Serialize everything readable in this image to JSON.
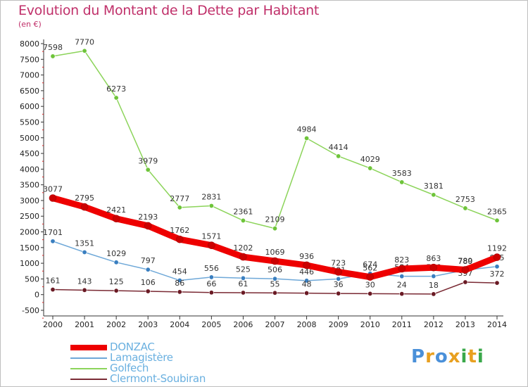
{
  "title": "Evolution du Montant de la Dette par Habitant",
  "subtitle": "(en €)",
  "logo": {
    "letters": [
      "P",
      "r",
      "o",
      "x",
      "i",
      "t",
      "i"
    ],
    "colors": [
      "#4a90d9",
      "#e8a020",
      "#4a90d9",
      "#e8a020",
      "#3aa84a",
      "#e8a020",
      "#3aa84a"
    ]
  },
  "chart_data": {
    "type": "line",
    "x": [
      "2000",
      "2001",
      "2002",
      "2003",
      "2004",
      "2005",
      "2006",
      "2007",
      "2008",
      "2009",
      "2010",
      "2011",
      "2012",
      "2013",
      "2014"
    ],
    "ylim": [
      -500,
      8000
    ],
    "yticks": [
      "-500",
      "0",
      "500",
      "1000",
      "1500",
      "2000",
      "2500",
      "3000",
      "3500",
      "4000",
      "4500",
      "5000",
      "5500",
      "6000",
      "6500",
      "7000",
      "7500",
      "8000"
    ],
    "grid": false,
    "legend_position": "bottom-left",
    "series": [
      {
        "name": "Golfech",
        "color": "#8cd45a",
        "marker": "#6ec43a",
        "values": [
          7598,
          7770,
          6273,
          3979,
          2777,
          2831,
          2361,
          2109,
          4984,
          4414,
          4029,
          3583,
          3181,
          2753,
          2365
        ],
        "labels": [
          "7598",
          "7770",
          "6273",
          "3979",
          "2777",
          "2831",
          "2361",
          "2109",
          "4984",
          "4414",
          "4029",
          "3583",
          "3181",
          "2753",
          "2365"
        ]
      },
      {
        "name": "Lamagistère",
        "color": "#6ea8d8",
        "marker": "#3a7fc0",
        "values": [
          1701,
          1351,
          1029,
          797,
          454,
          556,
          525,
          506,
          446,
          501,
          674,
          584,
          586,
          780,
          895
        ],
        "labels": [
          "1701",
          "1351",
          "1029",
          "797",
          "454",
          "556",
          "525",
          "506",
          "446",
          "501",
          "674",
          "584",
          "586",
          "780",
          "895"
        ]
      },
      {
        "name": "Clermont-Soubiran",
        "color": "#7a2a34",
        "marker": "#6a1a24",
        "values": [
          161,
          143,
          125,
          106,
          86,
          66,
          61,
          55,
          48,
          36,
          30,
          24,
          18,
          397,
          372
        ],
        "labels": [
          "161",
          "143",
          "125",
          "106",
          "86",
          "66",
          "61",
          "55",
          "48",
          "36",
          "30",
          "24",
          "18",
          "397",
          "372"
        ]
      },
      {
        "name": "DONZAC",
        "color": "#ee0000",
        "marker": "#cc0000",
        "values": [
          3077,
          2795,
          2421,
          2193,
          1762,
          1571,
          1202,
          1069,
          936,
          723,
          562,
          823,
          863,
          789,
          1192
        ],
        "labels": [
          "3077",
          "2795",
          "2421",
          "2193",
          "1762",
          "1571",
          "1202",
          "1069",
          "936",
          "723",
          "562",
          "823",
          "863",
          "789",
          "1192"
        ]
      }
    ]
  },
  "legend": [
    {
      "name": "DONZAC",
      "color": "#ee0000",
      "thickness": 8
    },
    {
      "name": "Lamagistère",
      "color": "#6ea8d8",
      "thickness": 2
    },
    {
      "name": "Golfech",
      "color": "#8cd45a",
      "thickness": 2
    },
    {
      "name": "Clermont-Soubiran",
      "color": "#7a2a34",
      "thickness": 2
    }
  ]
}
